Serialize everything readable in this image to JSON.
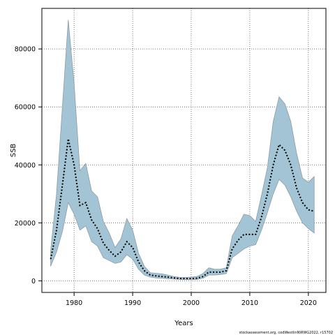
{
  "chart_data": {
    "type": "line",
    "xlabel": "Years",
    "ylabel": "SSB",
    "xlim": [
      1974.5,
      2023.0
    ],
    "ylim": [
      -4000,
      94000
    ],
    "xticks": [
      1980,
      1990,
      2000,
      2010,
      2020
    ],
    "yticks": [
      0,
      20000,
      40000,
      60000,
      80000
    ],
    "xtick_labels": [
      "1980",
      "1990",
      "2000",
      "2010",
      "2020"
    ],
    "ytick_labels": [
      "0",
      "20000",
      "40000",
      "60000",
      "80000"
    ],
    "grid": true,
    "credit": "stockassessment.org, codWestlinNWWG2022, r15702",
    "colors": {
      "band": "#a3c4d4",
      "band_edge": "#8e9ca4",
      "line": "#000000",
      "grid": "#555555"
    },
    "x": [
      1976,
      1977,
      1978,
      1979,
      1980,
      1981,
      1982,
      1983,
      1984,
      1985,
      1986,
      1987,
      1988,
      1989,
      1990,
      1991,
      1992,
      1993,
      1994,
      1995,
      1996,
      1997,
      1998,
      1999,
      2000,
      2001,
      2002,
      2003,
      2004,
      2005,
      2006,
      2007,
      2008,
      2009,
      2010,
      2011,
      2012,
      2013,
      2014,
      2015,
      2016,
      2017,
      2018,
      2019,
      2020,
      2021
    ],
    "series": [
      {
        "values": [
          7500,
          17500,
          33000,
          49000,
          40000,
          26000,
          27000,
          21000,
          18000,
          13000,
          10500,
          8500,
          10000,
          13500,
          11500,
          6500,
          3500,
          2000,
          1700,
          1500,
          1300,
          1000,
          800,
          800,
          800,
          900,
          1500,
          3000,
          3000,
          3000,
          3500,
          11000,
          14000,
          16000,
          16000,
          16000,
          22000,
          30000,
          40000,
          47000,
          45000,
          40000,
          32000,
          27000,
          24500,
          24000
        ],
        "lower": [
          5000,
          10000,
          17000,
          27000,
          23000,
          17500,
          19000,
          13500,
          12000,
          8000,
          7000,
          6000,
          6500,
          9000,
          7500,
          4000,
          2000,
          1300,
          1000,
          900,
          700,
          600,
          500,
          400,
          400,
          500,
          900,
          2000,
          2000,
          2200,
          2500,
          8000,
          9500,
          11000,
          12000,
          12500,
          17500,
          23500,
          30000,
          35000,
          33000,
          29000,
          24000,
          20000,
          18000,
          16500
        ],
        "upper": [
          10500,
          30000,
          60000,
          90000,
          68000,
          38000,
          40500,
          31000,
          29000,
          20500,
          16500,
          11500,
          14500,
          21500,
          17500,
          9500,
          5000,
          2800,
          2600,
          2400,
          2000,
          1500,
          1200,
          1200,
          1300,
          1500,
          2500,
          4500,
          4000,
          4000,
          4500,
          15500,
          19000,
          23000,
          22500,
          20500,
          29500,
          39000,
          55000,
          63500,
          61000,
          55000,
          44000,
          35500,
          34000,
          36000
        ]
      }
    ]
  }
}
